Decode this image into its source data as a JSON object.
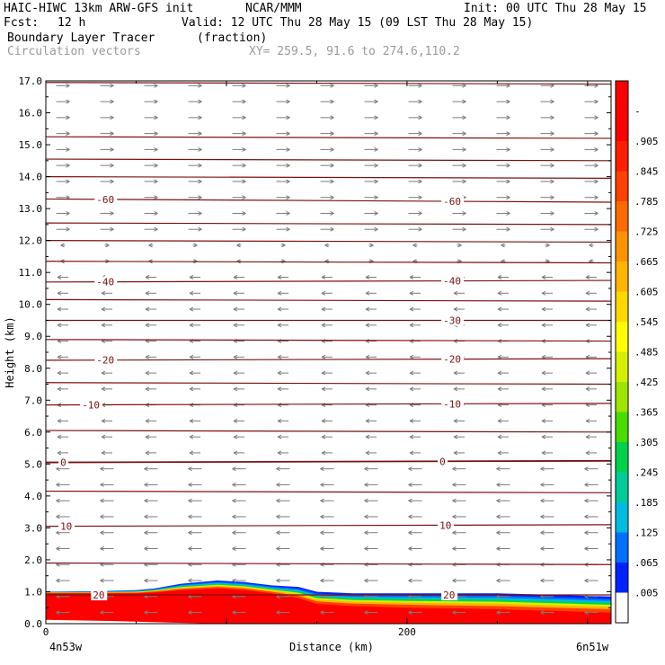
{
  "header": {
    "model": "HAIC-HIWC 13km ARW-GFS init",
    "org": "NCAR/MMM",
    "init": "Init: 00 UTC Thu 28 May 15",
    "fcst_label": "Fcst:",
    "fcst_value": "12 h",
    "valid": "Valid: 12 UTC Thu 28 May 15 (09 LST Thu 28 May 15)",
    "field": "Boundary Layer Tracer",
    "units": "(fraction)",
    "vectors": "Circulation vectors",
    "xy": "XY= 259.5, 91.6 to 274.6,110.2"
  },
  "colors": {
    "contour": "#7a1010",
    "vector": "#7c7c7c",
    "tracer_high": "#ff0000"
  },
  "chart_data": {
    "type": "heatmap",
    "title": "Boundary Layer Tracer",
    "xlabel": "Distance (km)",
    "ylabel": "Height (km)",
    "xlim": [
      0,
      313
    ],
    "ylim": [
      0,
      17
    ],
    "y_ticks": [
      "0.0",
      "1.0",
      "2.0",
      "3.0",
      "4.0",
      "5.0",
      "6.0",
      "7.0",
      "8.0",
      "9.0",
      "10.0",
      "11.0",
      "12.0",
      "13.0",
      "14.0",
      "15.0",
      "16.0",
      "17.0"
    ],
    "x_ticks": [
      {
        "value": 0,
        "label": "0"
      },
      {
        "value": 200,
        "label": "200"
      }
    ],
    "x_end_labels": {
      "left": "4n53w",
      "right": "6n51w"
    },
    "colorbar": {
      "labels": [
        "-",
        ".905",
        ".845",
        ".785",
        ".725",
        ".665",
        ".605",
        ".545",
        ".485",
        ".425",
        ".365",
        ".305",
        ".245",
        ".185",
        ".125",
        ".065",
        ".005"
      ],
      "colors": [
        "#ff0000",
        "#ff0000",
        "#ff1e00",
        "#ff4000",
        "#ff6a00",
        "#ff9200",
        "#ffb400",
        "#ffd800",
        "#ffff00",
        "#d4f000",
        "#9ce600",
        "#48dc00",
        "#00d24a",
        "#00cc98",
        "#00bce0",
        "#0070ff",
        "#0022ff",
        "#ffffff"
      ]
    },
    "tracer_top_km": [
      {
        "x": 0,
        "top": 1.0,
        "red_top": 0.95
      },
      {
        "x": 30,
        "top": 1.02,
        "red_top": 0.95
      },
      {
        "x": 50,
        "top": 1.05,
        "red_top": 0.95
      },
      {
        "x": 60,
        "top": 1.1,
        "red_top": 0.98
      },
      {
        "x": 75,
        "top": 1.25,
        "red_top": 1.05
      },
      {
        "x": 95,
        "top": 1.35,
        "red_top": 1.1
      },
      {
        "x": 110,
        "top": 1.3,
        "red_top": 1.05
      },
      {
        "x": 125,
        "top": 1.2,
        "red_top": 0.95
      },
      {
        "x": 140,
        "top": 1.15,
        "red_top": 0.8
      },
      {
        "x": 150,
        "top": 1.0,
        "red_top": 0.62
      },
      {
        "x": 170,
        "top": 0.95,
        "red_top": 0.55
      },
      {
        "x": 200,
        "top": 0.95,
        "red_top": 0.5
      },
      {
        "x": 250,
        "top": 0.95,
        "red_top": 0.45
      },
      {
        "x": 313,
        "top": 0.85,
        "red_top": 0.35
      }
    ],
    "terrain_km": [
      {
        "x": 0,
        "h": 0.12
      },
      {
        "x": 40,
        "h": 0.08
      },
      {
        "x": 70,
        "h": 0.03
      },
      {
        "x": 100,
        "h": 0.0
      },
      {
        "x": 313,
        "h": 0.0
      }
    ],
    "contours": [
      {
        "value": "-60",
        "y": [
          13.3,
          13.2
        ],
        "labels": [
          {
            "x": 28,
            "text": "-60"
          },
          {
            "x": 220,
            "text": "-60"
          }
        ]
      },
      {
        "value": "-40",
        "y": [
          10.7,
          10.75
        ],
        "labels": [
          {
            "x": 28,
            "text": "-40"
          },
          {
            "x": 220,
            "text": "-40"
          }
        ]
      },
      {
        "value": "-30",
        "y": [
          9.5,
          9.5
        ],
        "labels": [
          {
            "x": 220,
            "text": "-30"
          }
        ]
      },
      {
        "value": "-20",
        "y": [
          8.25,
          8.3
        ],
        "labels": [
          {
            "x": 28,
            "text": "-20"
          },
          {
            "x": 220,
            "text": "-20"
          }
        ]
      },
      {
        "value": "-10",
        "y": [
          6.85,
          6.9
        ],
        "labels": [
          {
            "x": 20,
            "text": "-10"
          },
          {
            "x": 220,
            "text": "-10"
          }
        ]
      },
      {
        "value": "0",
        "y": [
          5.05,
          5.1
        ],
        "labels": [
          {
            "x": 8,
            "text": "0"
          },
          {
            "x": 218,
            "text": "0"
          }
        ]
      },
      {
        "value": "10",
        "y": [
          3.05,
          3.1
        ],
        "labels": [
          {
            "x": 8,
            "text": "10"
          },
          {
            "x": 218,
            "text": "10"
          }
        ]
      },
      {
        "value": "20",
        "y": [
          0.9,
          0.9
        ],
        "labels": [
          {
            "x": 26,
            "text": "20"
          },
          {
            "x": 220,
            "text": "20"
          }
        ]
      }
    ],
    "extra_isotherms_km": [
      16.95,
      15.25,
      14.55,
      14.0,
      12.55,
      12.0,
      11.35,
      10.15,
      8.9,
      7.55,
      6.05,
      4.15,
      1.9
    ]
  }
}
